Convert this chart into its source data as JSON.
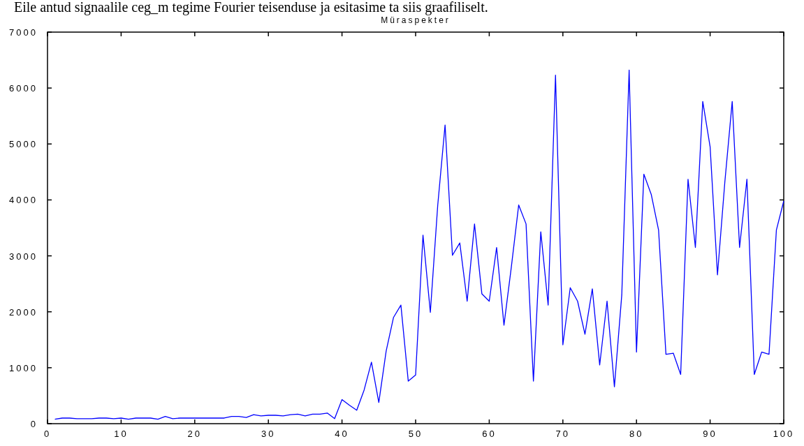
{
  "chart_data": {
    "type": "line",
    "title": "Müraspekter",
    "annotations": [
      "Eile antud signaalile ceg_m tegime Fourier teisenduse ja esitasime ta siis graafiliselt."
    ],
    "x": [
      1,
      2,
      3,
      4,
      5,
      6,
      7,
      8,
      9,
      10,
      11,
      12,
      13,
      14,
      15,
      16,
      17,
      18,
      19,
      20,
      21,
      22,
      23,
      24,
      25,
      26,
      27,
      28,
      29,
      30,
      31,
      32,
      33,
      34,
      35,
      36,
      37,
      38,
      39,
      40,
      41,
      42,
      43,
      44,
      45,
      46,
      47,
      48,
      49,
      50,
      51,
      52,
      53,
      54,
      55,
      56,
      57,
      58,
      59,
      60,
      61,
      62,
      63,
      64,
      65,
      66,
      67,
      68,
      69,
      70,
      71,
      72,
      73,
      74,
      75,
      76,
      77,
      78,
      79,
      80,
      81,
      82,
      83,
      84,
      85,
      86,
      87,
      88,
      89,
      90,
      91,
      92,
      93,
      94,
      95,
      96,
      97,
      98,
      99,
      100
    ],
    "series": [
      {
        "color": "#0000ff",
        "values": [
          80,
          100,
          100,
          90,
          90,
          90,
          100,
          100,
          90,
          100,
          80,
          100,
          100,
          100,
          80,
          130,
          90,
          100,
          100,
          100,
          100,
          100,
          100,
          100,
          130,
          130,
          110,
          160,
          140,
          150,
          150,
          140,
          160,
          170,
          140,
          170,
          170,
          190,
          90,
          430,
          330,
          240,
          600,
          1100,
          380,
          1300,
          1900,
          2120,
          760,
          870,
          3370,
          1990,
          3900,
          5340,
          3010,
          3230,
          2190,
          3570,
          2320,
          2190,
          3150,
          1760,
          2800,
          3910,
          3570,
          760,
          3430,
          2120,
          6230,
          1410,
          2430,
          2190,
          1600,
          2410,
          1050,
          2190,
          660,
          2300,
          6320,
          1280,
          4460,
          4100,
          3460,
          1240,
          1260,
          880,
          4370,
          3150,
          5760,
          4950,
          2660,
          4320,
          5760,
          3150,
          4370,
          880,
          1280,
          1240,
          3460,
          3980
        ]
      }
    ],
    "xlim": [
      0,
      100
    ],
    "xticks": [
      0,
      10,
      20,
      30,
      40,
      50,
      60,
      70,
      80,
      90,
      100
    ],
    "ylim": [
      0,
      7000
    ],
    "yticks": [
      0,
      1000,
      2000,
      3000,
      4000,
      5000,
      6000,
      7000
    ],
    "grid": false,
    "marker": "none",
    "line_style": "solid"
  }
}
